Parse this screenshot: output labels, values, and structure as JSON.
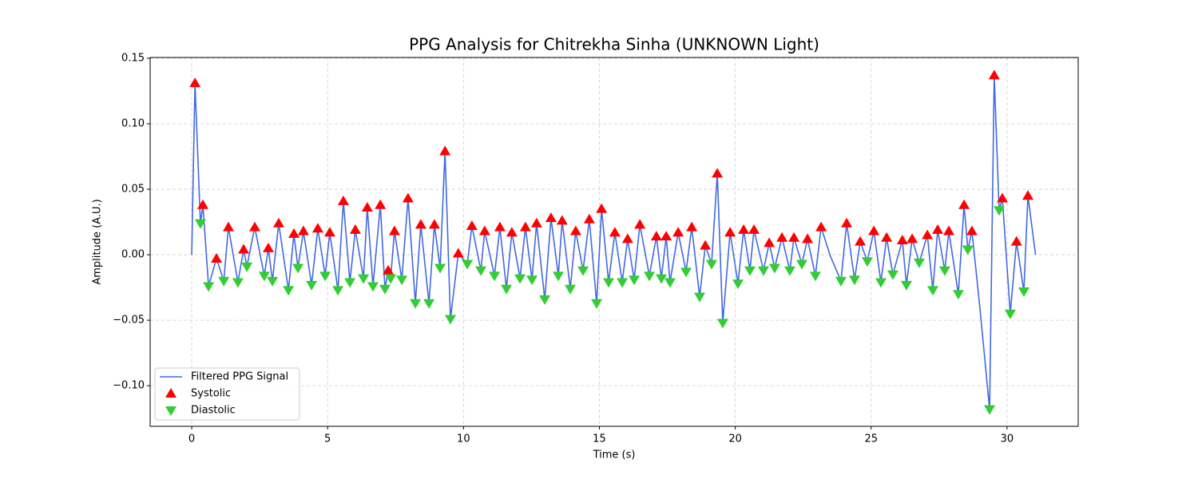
{
  "chart_data": {
    "type": "line",
    "title": "PPG Analysis for Chitrekha Sinha (UNKNOWN Light)",
    "x_label": "Time (s)",
    "y_label": "Amplitude (A.U.)",
    "xlim": [
      -1.53,
      32.62
    ],
    "ylim": [
      -0.131,
      0.1506
    ],
    "xticks": [
      0,
      5,
      10,
      15,
      20,
      25,
      30
    ],
    "yticks": [
      {
        "value": -0.1,
        "label": "−0.10"
      },
      {
        "value": -0.05,
        "label": "−0.05"
      },
      {
        "value": 0,
        "label": "0.00"
      },
      0.05,
      {
        "value": 0.1,
        "label": "0.10"
      },
      0.15
    ],
    "grid": true,
    "legend": "lower left",
    "series": [
      {
        "name": "Filtered PPG Signal",
        "type": "line",
        "color": "#4169e1",
        "x": [
          0,
          0.12,
          0.32,
          0.41,
          0.62,
          0.91,
          1.18,
          1.35,
          1.7,
          1.91,
          2.03,
          2.32,
          2.67,
          2.82,
          2.97,
          3.2,
          3.56,
          3.76,
          3.91,
          4.11,
          4.41,
          4.64,
          4.91,
          5.08,
          5.38,
          5.58,
          5.82,
          6.02,
          6.32,
          6.46,
          6.67,
          6.94,
          7.11,
          7.23,
          7.32,
          7.46,
          7.73,
          7.96,
          8.23,
          8.43,
          8.73,
          8.93,
          9.14,
          9.32,
          9.52,
          9.81,
          10.14,
          10.31,
          10.64,
          10.78,
          11.14,
          11.34,
          11.58,
          11.78,
          12.08,
          12.28,
          12.52,
          12.69,
          12.99,
          13.22,
          13.49,
          13.63,
          13.93,
          14.13,
          14.4,
          14.63,
          14.9,
          15.08,
          15.34,
          15.57,
          15.84,
          16.04,
          16.28,
          16.49,
          16.84,
          17.1,
          17.28,
          17.46,
          17.6,
          17.9,
          18.19,
          18.4,
          18.69,
          18.9,
          19.13,
          19.34,
          19.54,
          19.81,
          20.1,
          20.31,
          20.54,
          20.69,
          21.04,
          21.25,
          21.45,
          21.72,
          22.01,
          22.16,
          22.45,
          22.66,
          22.95,
          23.16,
          23.5,
          23.89,
          24.1,
          24.39,
          24.6,
          24.86,
          25.1,
          25.36,
          25.57,
          25.8,
          26.15,
          26.3,
          26.51,
          26.77,
          27.07,
          27.27,
          27.45,
          27.71,
          27.86,
          28.21,
          28.42,
          28.56,
          28.71,
          29.0,
          29.36,
          29.53,
          29.71,
          29.83,
          30.12,
          30.35,
          30.62,
          30.77,
          31.05
        ],
        "values": [
          0,
          0.131,
          0.024,
          0.038,
          -0.024,
          -0.003,
          -0.02,
          0.021,
          -0.021,
          0.004,
          -0.009,
          0.021,
          -0.016,
          0.005,
          -0.02,
          0.024,
          -0.027,
          0.016,
          -0.01,
          0.018,
          -0.023,
          0.02,
          -0.016,
          0.017,
          -0.027,
          0.041,
          -0.021,
          0.019,
          -0.018,
          0.036,
          -0.024,
          0.038,
          -0.026,
          -0.012,
          -0.018,
          0.018,
          -0.019,
          0.043,
          -0.037,
          0.023,
          -0.037,
          0.023,
          -0.01,
          0.079,
          -0.049,
          0.001,
          -0.007,
          0.022,
          -0.012,
          0.018,
          -0.016,
          0.021,
          -0.026,
          0.017,
          -0.018,
          0.021,
          -0.019,
          0.024,
          -0.034,
          0.028,
          -0.016,
          0.026,
          -0.026,
          0.018,
          -0.012,
          0.027,
          -0.037,
          0.035,
          -0.021,
          0.017,
          -0.021,
          0.012,
          -0.019,
          0.023,
          -0.016,
          0.014,
          -0.018,
          0.014,
          -0.021,
          0.017,
          -0.013,
          0.021,
          -0.032,
          0.007,
          -0.007,
          0.062,
          -0.052,
          0.017,
          -0.022,
          0.019,
          -0.012,
          0.019,
          -0.012,
          0.009,
          -0.01,
          0.013,
          -0.012,
          0.013,
          -0.007,
          0.012,
          -0.016,
          0.021,
          -0.001,
          -0.02,
          0.024,
          -0.019,
          0.01,
          -0.005,
          0.018,
          -0.021,
          0.013,
          -0.015,
          0.011,
          -0.023,
          0.012,
          -0.006,
          0.015,
          -0.027,
          0.019,
          -0.012,
          0.018,
          -0.03,
          0.038,
          0.004,
          0.018,
          -0.04,
          -0.118,
          0.137,
          0.034,
          0.043,
          -0.045,
          0.01,
          -0.028,
          0.045,
          0
        ]
      },
      {
        "name": "Systolic",
        "type": "scatter",
        "marker": "triangle-up",
        "color": "#ff0000",
        "x": [
          0.12,
          0.41,
          0.91,
          1.35,
          1.91,
          2.32,
          2.82,
          3.2,
          3.76,
          4.11,
          4.64,
          5.08,
          5.58,
          6.02,
          6.46,
          6.94,
          7.23,
          7.46,
          7.96,
          8.43,
          8.93,
          9.32,
          9.81,
          10.31,
          10.78,
          11.34,
          11.78,
          12.28,
          12.69,
          13.22,
          13.63,
          14.13,
          14.63,
          15.08,
          15.57,
          16.04,
          16.49,
          17.1,
          17.46,
          17.9,
          18.4,
          18.9,
          19.34,
          19.81,
          20.31,
          20.69,
          21.25,
          21.72,
          22.16,
          22.66,
          23.16,
          24.1,
          24.6,
          25.1,
          25.57,
          26.15,
          26.51,
          27.07,
          27.45,
          27.86,
          28.42,
          28.71,
          29.53,
          29.83,
          30.35,
          30.77
        ],
        "values": [
          0.131,
          0.038,
          -0.003,
          0.021,
          0.004,
          0.021,
          0.005,
          0.024,
          0.016,
          0.018,
          0.02,
          0.017,
          0.041,
          0.019,
          0.036,
          0.038,
          -0.012,
          0.018,
          0.043,
          0.023,
          0.023,
          0.079,
          0.001,
          0.022,
          0.018,
          0.021,
          0.017,
          0.021,
          0.024,
          0.028,
          0.026,
          0.018,
          0.027,
          0.035,
          0.017,
          0.012,
          0.023,
          0.014,
          0.014,
          0.017,
          0.021,
          0.007,
          0.062,
          0.017,
          0.019,
          0.019,
          0.009,
          0.013,
          0.013,
          0.012,
          0.021,
          0.024,
          0.01,
          0.018,
          0.013,
          0.011,
          0.012,
          0.015,
          0.019,
          0.018,
          0.038,
          0.018,
          0.137,
          0.043,
          0.01,
          0.045
        ]
      },
      {
        "name": "Diastolic",
        "type": "scatter",
        "marker": "triangle-down",
        "color": "#32cd32",
        "x": [
          0.32,
          0.62,
          1.18,
          1.7,
          2.03,
          2.67,
          2.97,
          3.56,
          3.91,
          4.41,
          4.91,
          5.38,
          5.82,
          6.32,
          6.67,
          7.11,
          7.32,
          7.73,
          8.23,
          8.73,
          9.14,
          9.52,
          10.14,
          10.64,
          11.14,
          11.58,
          12.08,
          12.52,
          12.99,
          13.49,
          13.93,
          14.4,
          14.9,
          15.34,
          15.84,
          16.28,
          16.84,
          17.28,
          17.6,
          18.19,
          18.69,
          19.13,
          19.54,
          20.1,
          20.54,
          21.04,
          21.45,
          22.01,
          22.45,
          22.95,
          23.89,
          24.39,
          24.86,
          25.36,
          25.8,
          26.3,
          26.77,
          27.27,
          27.71,
          28.21,
          28.56,
          29.36,
          29.71,
          30.12,
          30.62
        ],
        "values": [
          0.024,
          -0.024,
          -0.02,
          -0.021,
          -0.009,
          -0.016,
          -0.02,
          -0.027,
          -0.01,
          -0.023,
          -0.016,
          -0.027,
          -0.021,
          -0.018,
          -0.024,
          -0.026,
          -0.018,
          -0.019,
          -0.037,
          -0.037,
          -0.01,
          -0.049,
          -0.007,
          -0.012,
          -0.016,
          -0.026,
          -0.018,
          -0.019,
          -0.034,
          -0.016,
          -0.026,
          -0.012,
          -0.037,
          -0.021,
          -0.021,
          -0.019,
          -0.016,
          -0.018,
          -0.021,
          -0.013,
          -0.032,
          -0.007,
          -0.052,
          -0.022,
          -0.012,
          -0.012,
          -0.01,
          -0.012,
          -0.007,
          -0.016,
          -0.02,
          -0.019,
          -0.005,
          -0.021,
          -0.015,
          -0.023,
          -0.006,
          -0.027,
          -0.012,
          -0.03,
          0.004,
          -0.118,
          0.034,
          -0.045,
          -0.028
        ]
      }
    ]
  }
}
